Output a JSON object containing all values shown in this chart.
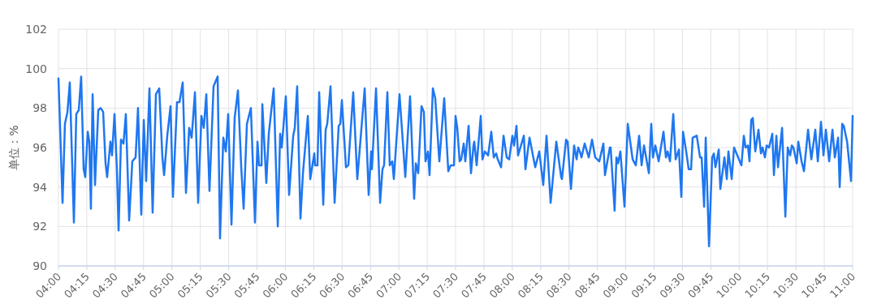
{
  "chart_data": {
    "type": "line",
    "ylabel": "单位：%",
    "grid": true,
    "marker": "none",
    "line_style": "solid",
    "ylim": [
      90,
      102
    ],
    "yticks": [
      90,
      92,
      94,
      96,
      98,
      100,
      102
    ],
    "xlim": [
      4,
      11
    ],
    "xticks": [
      {
        "value": 4,
        "label": "04:00"
      },
      {
        "value": 4.25,
        "label": "04:15"
      },
      {
        "value": 4.5,
        "label": "04:30"
      },
      {
        "value": 4.75,
        "label": "04:45"
      },
      {
        "value": 5,
        "label": "05:00"
      },
      {
        "value": 5.25,
        "label": "05:15"
      },
      {
        "value": 5.5,
        "label": "05:30"
      },
      {
        "value": 5.75,
        "label": "05:45"
      },
      {
        "value": 6,
        "label": "06:00"
      },
      {
        "value": 6.25,
        "label": "06:15"
      },
      {
        "value": 6.5,
        "label": "06:30"
      },
      {
        "value": 6.75,
        "label": "06:45"
      },
      {
        "value": 7,
        "label": "07:00"
      },
      {
        "value": 7.25,
        "label": "07:15"
      },
      {
        "value": 7.5,
        "label": "07:30"
      },
      {
        "value": 7.75,
        "label": "07:45"
      },
      {
        "value": 8,
        "label": "08:00"
      },
      {
        "value": 8.25,
        "label": "08:15"
      },
      {
        "value": 8.5,
        "label": "08:30"
      },
      {
        "value": 8.75,
        "label": "08:45"
      },
      {
        "value": 9,
        "label": "09:00"
      },
      {
        "value": 9.25,
        "label": "09:15"
      },
      {
        "value": 9.5,
        "label": "09:30"
      },
      {
        "value": 9.75,
        "label": "09:45"
      },
      {
        "value": 10,
        "label": "10:00"
      },
      {
        "value": 10.25,
        "label": "10:15"
      },
      {
        "value": 10.5,
        "label": "10:30"
      },
      {
        "value": 10.75,
        "label": "10:45"
      },
      {
        "value": 11,
        "label": "11:00"
      }
    ],
    "series": [
      {
        "color": "#1f77f0",
        "x": [
          4.0,
          4.036,
          4.057,
          4.079,
          4.1,
          4.136,
          4.157,
          4.179,
          4.2,
          4.222,
          4.236,
          4.258,
          4.272,
          4.286,
          4.301,
          4.322,
          4.351,
          4.372,
          4.394,
          4.415,
          4.429,
          4.458,
          4.472,
          4.494,
          4.515,
          4.53,
          4.551,
          4.573,
          4.594,
          4.623,
          4.651,
          4.68,
          4.701,
          4.73,
          4.752,
          4.773,
          4.802,
          4.83,
          4.859,
          4.888,
          4.916,
          4.931,
          4.959,
          4.988,
          5.009,
          5.045,
          5.067,
          5.095,
          5.124,
          5.152,
          5.174,
          5.203,
          5.231,
          5.26,
          5.281,
          5.303,
          5.331,
          5.367,
          5.403,
          5.424,
          5.453,
          5.475,
          5.496,
          5.525,
          5.553,
          5.582,
          5.611,
          5.632,
          5.661,
          5.696,
          5.732,
          5.754,
          5.768,
          5.79,
          5.797,
          5.832,
          5.854,
          5.897,
          5.933,
          5.954,
          5.968,
          6.004,
          6.033,
          6.069,
          6.083,
          6.104,
          6.133,
          6.155,
          6.198,
          6.219,
          6.255,
          6.262,
          6.283,
          6.298,
          6.334,
          6.355,
          6.369,
          6.398,
          6.434,
          6.47,
          6.484,
          6.498,
          6.534,
          6.555,
          6.598,
          6.634,
          6.699,
          6.734,
          6.756,
          6.763,
          6.799,
          6.835,
          6.856,
          6.87,
          6.899,
          6.92,
          6.942,
          6.956,
          7.006,
          7.057,
          7.099,
          7.135,
          7.15,
          7.171,
          7.2,
          7.221,
          7.235,
          7.257,
          7.271,
          7.3,
          7.321,
          7.357,
          7.4,
          7.436,
          7.457,
          7.486,
          7.5,
          7.515,
          7.536,
          7.55,
          7.572,
          7.586,
          7.615,
          7.636,
          7.658,
          7.665,
          7.686,
          7.722,
          7.737,
          7.758,
          7.787,
          7.815,
          7.837,
          7.858,
          7.872,
          7.901,
          7.923,
          7.951,
          7.973,
          8.001,
          8.016,
          8.037,
          8.051,
          8.102,
          8.116,
          8.152,
          8.202,
          8.238,
          8.273,
          8.302,
          8.338,
          8.388,
          8.431,
          8.438,
          8.474,
          8.488,
          8.517,
          8.545,
          8.567,
          8.581,
          8.595,
          8.61,
          8.638,
          8.674,
          8.703,
          8.731,
          8.767,
          8.803,
          8.817,
          8.86,
          8.867,
          8.902,
          8.918,
          8.932,
          8.953,
          8.989,
          9.018,
          9.061,
          9.089,
          9.118,
          9.14,
          9.161,
          9.204,
          9.225,
          9.24,
          9.261,
          9.29,
          9.333,
          9.354,
          9.369,
          9.39,
          9.419,
          9.44,
          9.469,
          9.49,
          9.505,
          9.533,
          9.555,
          9.576,
          9.59,
          9.626,
          9.655,
          9.669,
          9.691,
          9.705,
          9.734,
          9.762,
          9.777,
          9.791,
          9.82,
          9.834,
          9.87,
          9.891,
          9.905,
          9.934,
          9.955,
          10.02,
          10.041,
          10.056,
          10.077,
          10.091,
          10.106,
          10.12,
          10.142,
          10.17,
          10.192,
          10.206,
          10.227,
          10.242,
          10.263,
          10.292,
          10.306,
          10.328,
          10.342,
          10.378,
          10.407,
          10.428,
          10.449,
          10.464,
          10.478,
          10.507,
          10.521,
          10.55,
          10.571,
          10.607,
          10.636,
          10.671,
          10.693,
          10.721,
          10.743,
          10.764,
          10.793,
          10.822,
          10.843,
          10.872,
          10.886,
          10.908,
          10.922,
          10.951,
          10.986,
          11.0
        ],
        "values": [
          99.5,
          93.2,
          97.2,
          97.8,
          99.3,
          92.2,
          97.7,
          97.9,
          99.6,
          94.9,
          94.5,
          96.8,
          96.3,
          92.9,
          98.7,
          94.1,
          97.9,
          98.0,
          97.8,
          95.2,
          94.5,
          96.3,
          95.6,
          97.7,
          94.9,
          91.8,
          96.4,
          96.2,
          97.7,
          92.3,
          95.3,
          95.5,
          98.0,
          92.6,
          97.4,
          94.3,
          99.0,
          92.7,
          98.7,
          99.0,
          95.5,
          94.6,
          96.6,
          98.1,
          93.5,
          98.3,
          98.3,
          99.3,
          93.7,
          97.0,
          96.5,
          98.8,
          93.2,
          97.6,
          97.0,
          98.7,
          93.8,
          99.1,
          99.6,
          91.4,
          96.5,
          95.8,
          97.7,
          92.1,
          97.5,
          98.9,
          95.0,
          92.9,
          97.2,
          98.0,
          92.2,
          96.3,
          95.1,
          95.1,
          98.2,
          94.2,
          96.7,
          99.0,
          92.0,
          96.7,
          96.0,
          98.6,
          93.6,
          96.6,
          97.0,
          99.1,
          92.4,
          94.7,
          97.6,
          94.4,
          95.7,
          95.1,
          95.1,
          98.8,
          93.1,
          96.9,
          97.2,
          99.1,
          93.2,
          97.1,
          97.2,
          98.4,
          95.0,
          95.1,
          98.8,
          94.4,
          99.0,
          93.6,
          95.8,
          94.9,
          99.0,
          93.2,
          94.9,
          95.1,
          98.8,
          95.1,
          95.3,
          94.4,
          98.7,
          94.5,
          98.6,
          93.4,
          95.2,
          94.7,
          98.1,
          97.8,
          95.3,
          95.8,
          94.6,
          99.0,
          98.5,
          95.3,
          98.5,
          94.8,
          95.1,
          95.1,
          97.6,
          97.0,
          95.3,
          95.4,
          96.2,
          95.3,
          97.1,
          94.7,
          96.1,
          96.3,
          95.1,
          97.6,
          95.4,
          95.8,
          95.6,
          96.8,
          95.5,
          95.7,
          95.4,
          95.0,
          96.6,
          95.5,
          95.4,
          96.6,
          96.1,
          97.1,
          95.6,
          96.6,
          94.9,
          96.5,
          95.0,
          95.8,
          94.1,
          96.6,
          93.2,
          96.3,
          94.5,
          94.4,
          96.4,
          96.3,
          93.9,
          96.1,
          95.4,
          96.0,
          95.8,
          95.5,
          96.2,
          95.5,
          96.4,
          95.5,
          95.3,
          96.2,
          94.6,
          96.0,
          96.0,
          92.8,
          95.5,
          95.2,
          95.8,
          93.0,
          97.2,
          95.4,
          95.1,
          96.6,
          95.1,
          96.1,
          94.7,
          97.2,
          95.5,
          96.1,
          95.3,
          96.8,
          95.5,
          95.8,
          95.3,
          97.7,
          95.4,
          95.9,
          93.5,
          96.8,
          95.8,
          94.9,
          94.9,
          96.5,
          96.6,
          95.5,
          95.5,
          93.0,
          96.5,
          91.0,
          95.5,
          95.7,
          95.0,
          95.9,
          93.9,
          95.5,
          94.4,
          95.8,
          94.4,
          96.0,
          95.1,
          96.6,
          96.0,
          96.1,
          95.3,
          97.4,
          97.5,
          95.8,
          96.9,
          95.7,
          96.0,
          95.5,
          96.1,
          96.0,
          96.7,
          94.6,
          96.6,
          95.0,
          97.0,
          92.5,
          96.0,
          95.6,
          96.1,
          96.0,
          95.2,
          96.3,
          95.3,
          94.8,
          96.9,
          95.4,
          96.9,
          95.3,
          97.3,
          95.6,
          96.9,
          95.3,
          96.9,
          95.5,
          96.5,
          94.0,
          97.2,
          97.1,
          96.3,
          94.3,
          97.6
        ]
      }
    ]
  }
}
